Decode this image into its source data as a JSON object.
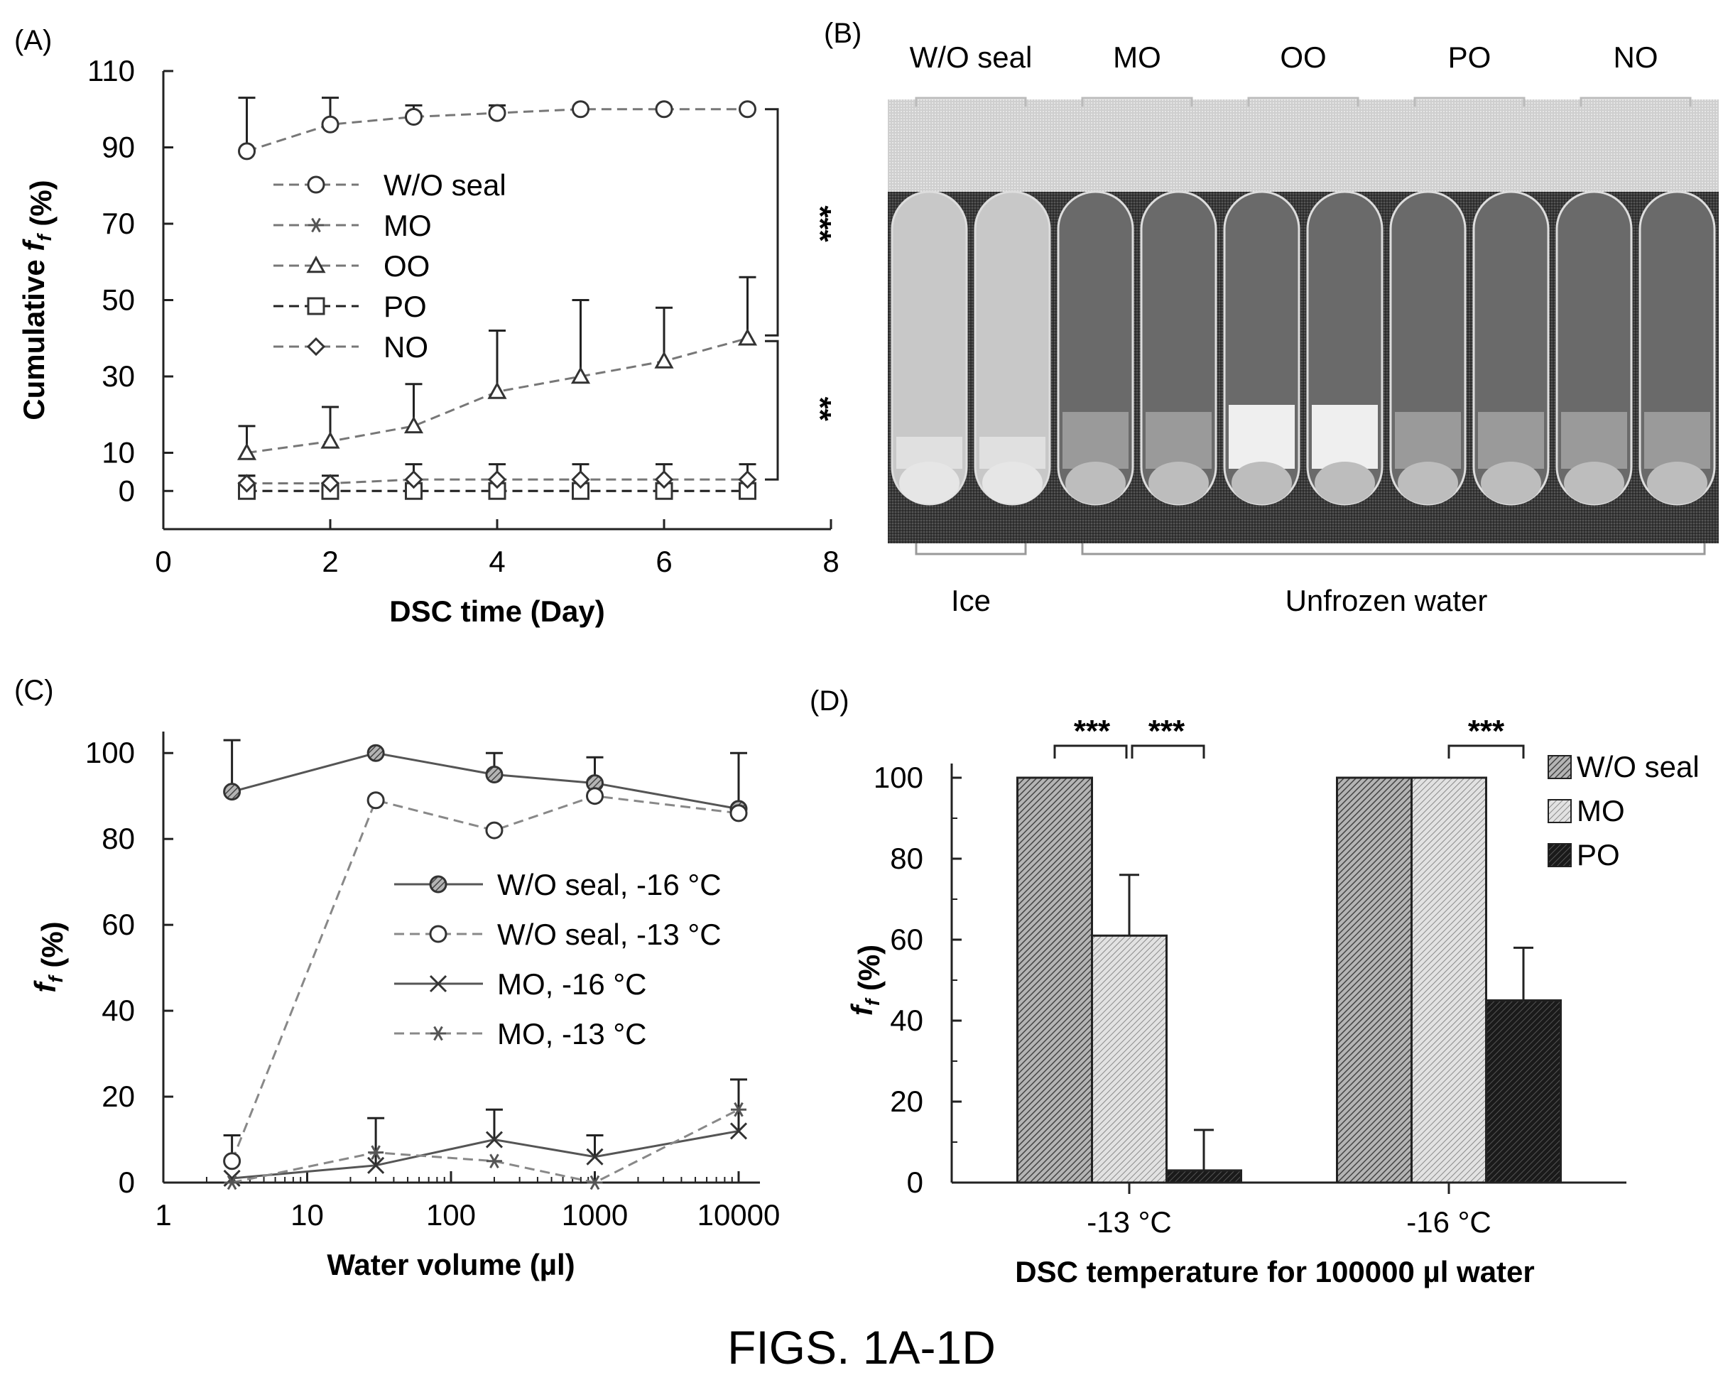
{
  "caption": "FIGS. 1A-1D",
  "chart_data": [
    {
      "panel": "(A)",
      "type": "line",
      "xlabel": "DSC time (Day)",
      "ylabel": "Cumulative f_f (%)",
      "xlim": [
        0,
        8
      ],
      "ylim": [
        -10,
        110
      ],
      "xticks": [
        "0",
        "2",
        "4",
        "6",
        "8"
      ],
      "yticks": [
        "110",
        "90",
        "70",
        "50",
        "30",
        "10",
        "0"
      ],
      "ytick_values": [
        110,
        90,
        70,
        50,
        30,
        10,
        0
      ],
      "xtick_values": [
        0,
        2,
        4,
        6,
        8
      ],
      "legend_position": "center-left",
      "x": [
        1,
        2,
        3,
        4,
        5,
        6,
        7
      ],
      "series": [
        {
          "name": "W/O seal",
          "marker": "circle",
          "values": [
            89,
            96,
            98,
            99,
            100,
            100,
            100
          ],
          "err": [
            14,
            7,
            3,
            2,
            0,
            0,
            0
          ]
        },
        {
          "name": "MO",
          "marker": "star",
          "values": [
            0,
            0,
            0,
            0,
            0,
            0,
            0
          ],
          "err": [
            4,
            2,
            2,
            2,
            2,
            2,
            2
          ]
        },
        {
          "name": "OO",
          "marker": "triangle",
          "values": [
            10,
            13,
            17,
            26,
            30,
            34,
            40
          ],
          "err": [
            7,
            9,
            11,
            16,
            20,
            14,
            16
          ]
        },
        {
          "name": "PO",
          "marker": "square",
          "values": [
            0,
            0,
            0,
            0,
            0,
            0,
            0
          ],
          "err": [
            0,
            0,
            0,
            0,
            0,
            0,
            0
          ]
        },
        {
          "name": "NO",
          "marker": "diamond",
          "values": [
            2,
            2,
            3,
            3,
            3,
            3,
            3
          ],
          "err": [
            2,
            2,
            4,
            4,
            4,
            4,
            4
          ]
        }
      ],
      "significance": [
        "***",
        "**"
      ]
    },
    {
      "panel": "(B)",
      "type": "photo",
      "group_labels": [
        "W/O seal",
        "MO",
        "OO",
        "PO",
        "NO"
      ],
      "bottom_labels": [
        "Ice",
        "Unfrozen water"
      ]
    },
    {
      "panel": "(C)",
      "type": "line",
      "xscale": "log",
      "xlabel": "Water volume (µl)",
      "ylabel": "f_f (%)",
      "xlim": [
        1,
        10000
      ],
      "ylim": [
        0,
        105
      ],
      "xticks": [
        "1",
        "10",
        "100",
        "1000",
        "10000"
      ],
      "xtick_values": [
        1,
        10,
        100,
        1000,
        10000
      ],
      "yticks": [
        "100",
        "80",
        "60",
        "40",
        "20",
        "0"
      ],
      "ytick_values": [
        100,
        80,
        60,
        40,
        20,
        0
      ],
      "legend_position": "center-right",
      "x": [
        3,
        30,
        200,
        1000,
        10000
      ],
      "series": [
        {
          "name": "W/O seal, -16 °C",
          "style": "solid",
          "marker": "hatched-circle",
          "values": [
            91,
            100,
            95,
            93,
            87
          ],
          "err": [
            12,
            0,
            5,
            6,
            13
          ]
        },
        {
          "name": "W/O seal, -13 °C",
          "style": "dashed",
          "marker": "circle",
          "values": [
            5,
            89,
            82,
            90,
            86
          ],
          "err": [
            6,
            0,
            0,
            0,
            0
          ]
        },
        {
          "name": "MO, -16 °C",
          "style": "solid",
          "marker": "x",
          "values": [
            1,
            4,
            10,
            6,
            12
          ],
          "err": [
            0,
            11,
            7,
            5,
            12
          ]
        },
        {
          "name": "MO, -13 °C",
          "style": "dashed",
          "marker": "star",
          "values": [
            0,
            7,
            5,
            0,
            17
          ],
          "err": [
            0,
            0,
            0,
            0,
            0
          ]
        }
      ]
    },
    {
      "panel": "(D)",
      "type": "bar",
      "xlabel": "DSC temperature for 100000 µl water",
      "ylabel": "f_f (%)",
      "ylim": [
        0,
        100
      ],
      "yticks": [
        "100",
        "80",
        "60",
        "40",
        "20",
        "0"
      ],
      "ytick_values": [
        100,
        80,
        60,
        40,
        20,
        0
      ],
      "categories": [
        "-13 °C",
        "-16 °C"
      ],
      "legend_position": "top-right",
      "series": [
        {
          "name": "W/O seal",
          "values": [
            100,
            100
          ],
          "err": [
            0,
            0
          ],
          "fill": "#999999",
          "pattern": "dense"
        },
        {
          "name": "MO",
          "values": [
            61,
            100
          ],
          "err": [
            15,
            0
          ],
          "fill": "#d0d0d0",
          "pattern": "light"
        },
        {
          "name": "PO",
          "values": [
            3,
            45
          ],
          "err": [
            10,
            13
          ],
          "fill": "#2a2a2a",
          "pattern": "dark"
        }
      ],
      "significance": [
        "***",
        "***",
        "***"
      ]
    }
  ]
}
